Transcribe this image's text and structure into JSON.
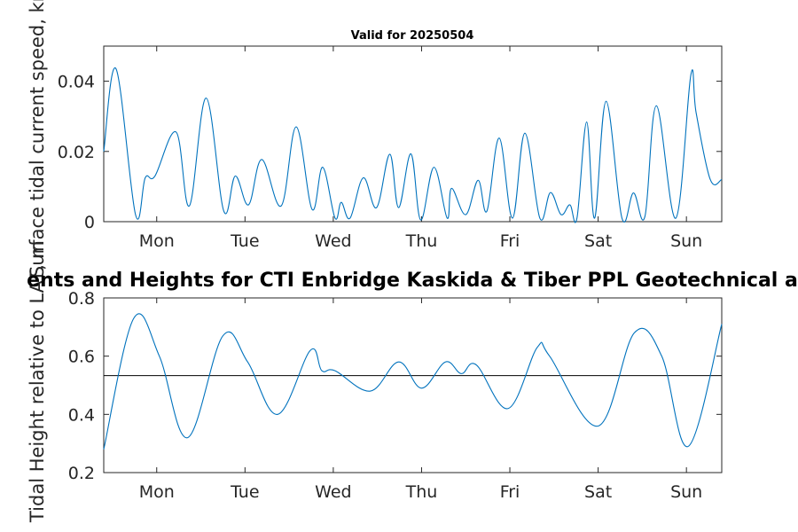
{
  "chart_data": [
    {
      "type": "line",
      "title": "Valid for 20250504",
      "ylabel": "Surface tidal current speed, kn",
      "xlim": [
        0,
        7
      ],
      "ylim": [
        0,
        0.05
      ],
      "x_ticks": [
        0.6,
        1.6,
        2.6,
        3.6,
        4.6,
        5.6,
        6.6
      ],
      "x_tick_labels": [
        "Mon",
        "Tue",
        "Wed",
        "Thu",
        "Fri",
        "Sat",
        "Sun"
      ],
      "y_ticks": [
        0,
        0.02,
        0.04
      ],
      "y_tick_labels": [
        "0",
        "0.02",
        "0.04"
      ],
      "line_color": "#0072bd",
      "series": [
        {
          "x": [
            0,
            0.14,
            0.36,
            0.47,
            0.58,
            0.82,
            0.97,
            1.16,
            1.36,
            1.49,
            1.64,
            1.79,
            2.01,
            2.18,
            2.36,
            2.48,
            2.62,
            2.69,
            2.79,
            2.94,
            3.09,
            3.24,
            3.34,
            3.48,
            3.59,
            3.74,
            3.89,
            3.94,
            4.1,
            4.24,
            4.34,
            4.48,
            4.63,
            4.77,
            4.94,
            5.06,
            5.18,
            5.28,
            5.36,
            5.47,
            5.56,
            5.69,
            5.87,
            6.0,
            6.13,
            6.26,
            6.48,
            6.65,
            6.71,
            6.87,
            7.0
          ],
          "y": [
            0.02,
            0.0435,
            0.002,
            0.0125,
            0.013,
            0.0255,
            0.0045,
            0.0352,
            0.003,
            0.013,
            0.0048,
            0.0177,
            0.0045,
            0.027,
            0.0035,
            0.0155,
            0.001,
            0.0055,
            0.001,
            0.0125,
            0.004,
            0.0192,
            0.004,
            0.0193,
            0.0005,
            0.0155,
            0.001,
            0.0095,
            0.002,
            0.0118,
            0.003,
            0.0238,
            0.001,
            0.0252,
            0.001,
            0.0083,
            0.002,
            0.0048,
            0.001,
            0.0284,
            0.001,
            0.0343,
            0.001,
            0.0082,
            0.0015,
            0.033,
            0.001,
            0.0418,
            0.031,
            0.012,
            0.012
          ]
        }
      ]
    },
    {
      "type": "line",
      "title": "ents and Heights for CTI Enbridge  Kaskida & Tiber PPL Geotechnical a",
      "ylabel": "Tidal Height relative to LAT, m",
      "xlim": [
        0,
        7
      ],
      "ylim": [
        0.2,
        0.8
      ],
      "x_ticks": [
        0.6,
        1.6,
        2.6,
        3.6,
        4.6,
        5.6,
        6.6
      ],
      "x_tick_labels": [
        "Mon",
        "Tue",
        "Wed",
        "Thu",
        "Fri",
        "Sat",
        "Sun"
      ],
      "y_ticks": [
        0.2,
        0.4,
        0.6,
        0.8
      ],
      "y_tick_labels": [
        "0.2",
        "0.4",
        "0.6",
        "0.8"
      ],
      "line_color": "#0072bd",
      "reference_line": 0.533,
      "series": [
        {
          "x": [
            0,
            0.34,
            0.63,
            0.95,
            1.35,
            1.63,
            1.97,
            2.34,
            2.47,
            2.62,
            3.02,
            3.34,
            3.6,
            3.87,
            4.05,
            4.22,
            4.58,
            4.91,
            5.05,
            5.6,
            6.01,
            6.32,
            6.62,
            7.0
          ],
          "y": [
            0.28,
            0.73,
            0.6,
            0.32,
            0.67,
            0.58,
            0.4,
            0.62,
            0.55,
            0.55,
            0.48,
            0.58,
            0.49,
            0.58,
            0.54,
            0.57,
            0.42,
            0.63,
            0.6,
            0.36,
            0.68,
            0.6,
            0.29,
            0.71
          ]
        }
      ]
    }
  ]
}
